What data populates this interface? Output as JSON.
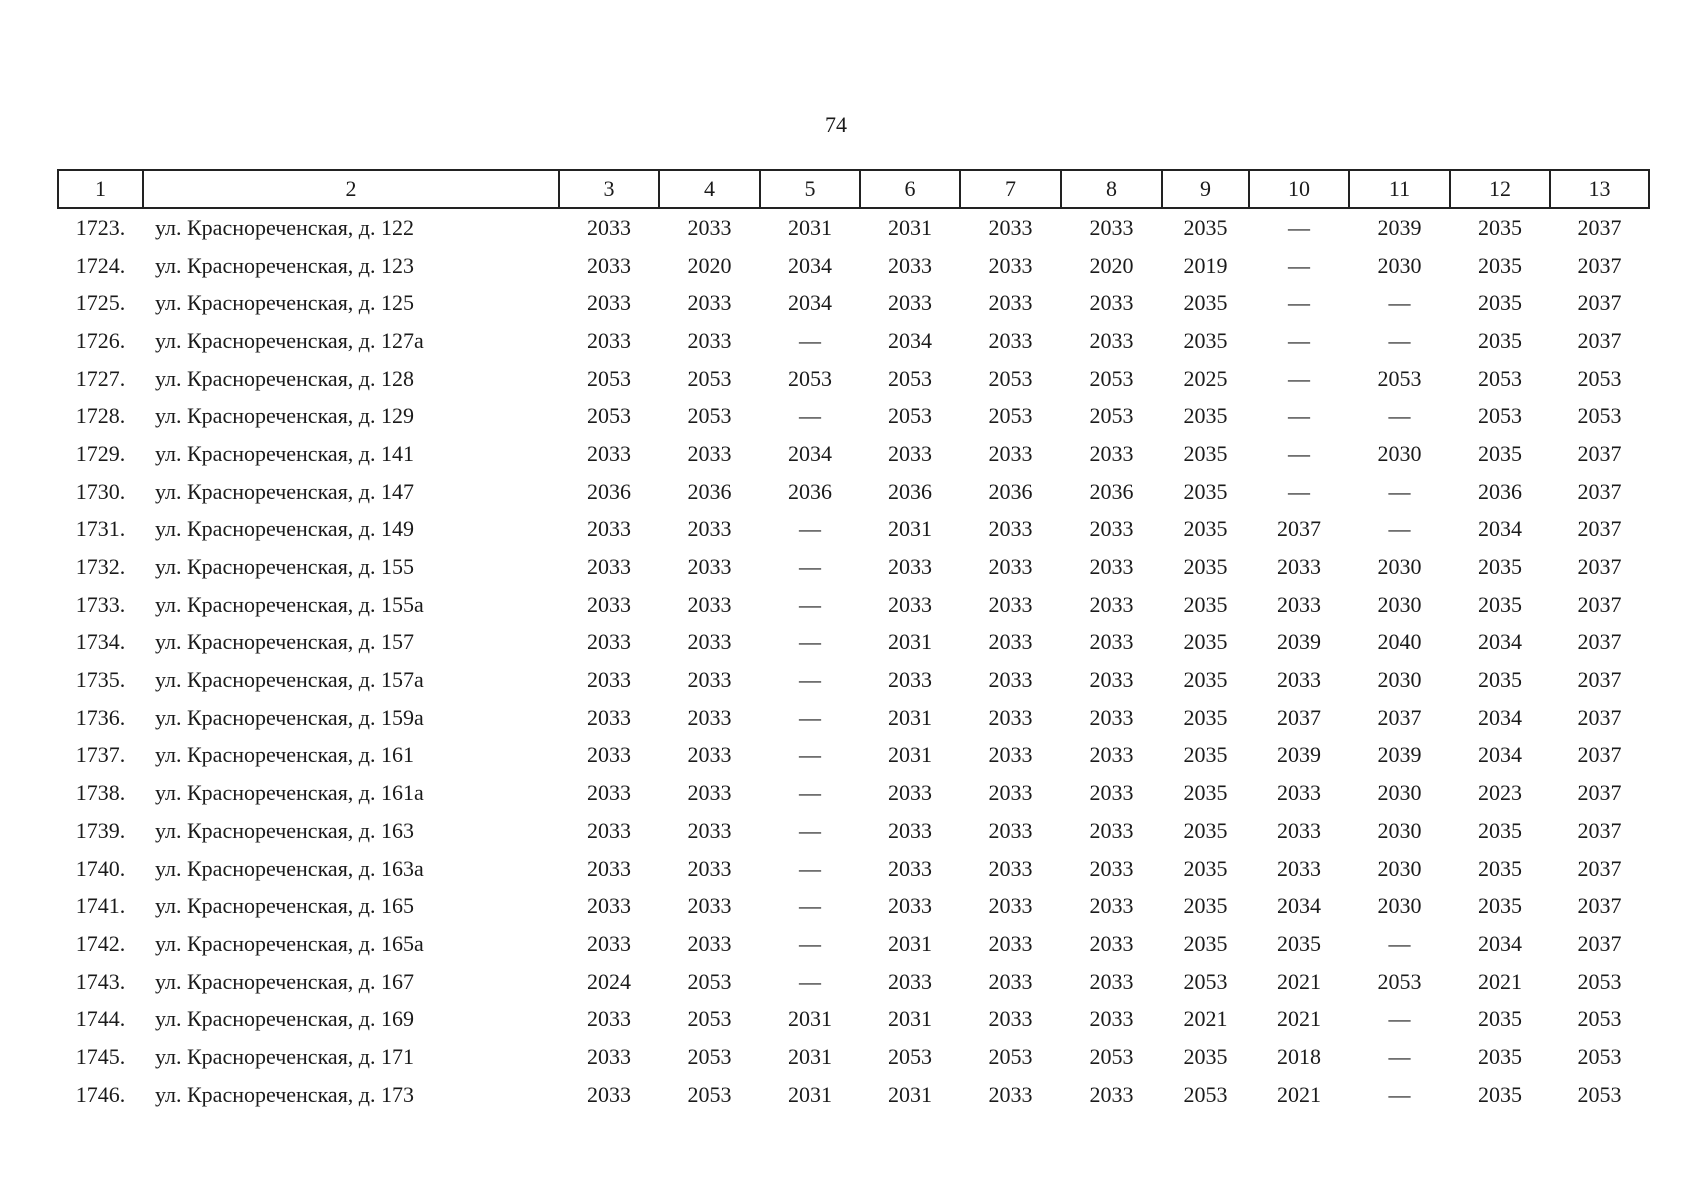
{
  "page_number": "74",
  "table": {
    "header": [
      "1",
      "2",
      "3",
      "4",
      "5",
      "6",
      "7",
      "8",
      "9",
      "10",
      "11",
      "12",
      "13"
    ],
    "rows": [
      [
        "1723.",
        "ул. Краснореченская, д. 122",
        "2033",
        "2033",
        "2031",
        "2031",
        "2033",
        "2033",
        "2035",
        "—",
        "2039",
        "2035",
        "2037"
      ],
      [
        "1724.",
        "ул. Краснореченская, д. 123",
        "2033",
        "2020",
        "2034",
        "2033",
        "2033",
        "2020",
        "2019",
        "—",
        "2030",
        "2035",
        "2037"
      ],
      [
        "1725.",
        "ул. Краснореченская, д. 125",
        "2033",
        "2033",
        "2034",
        "2033",
        "2033",
        "2033",
        "2035",
        "—",
        "—",
        "2035",
        "2037"
      ],
      [
        "1726.",
        "ул. Краснореченская, д. 127а",
        "2033",
        "2033",
        "—",
        "2034",
        "2033",
        "2033",
        "2035",
        "—",
        "—",
        "2035",
        "2037"
      ],
      [
        "1727.",
        "ул. Краснореченская, д. 128",
        "2053",
        "2053",
        "2053",
        "2053",
        "2053",
        "2053",
        "2025",
        "—",
        "2053",
        "2053",
        "2053"
      ],
      [
        "1728.",
        "ул. Краснореченская, д. 129",
        "2053",
        "2053",
        "—",
        "2053",
        "2053",
        "2053",
        "2035",
        "—",
        "—",
        "2053",
        "2053"
      ],
      [
        "1729.",
        "ул. Краснореченская, д. 141",
        "2033",
        "2033",
        "2034",
        "2033",
        "2033",
        "2033",
        "2035",
        "—",
        "2030",
        "2035",
        "2037"
      ],
      [
        "1730.",
        "ул. Краснореченская, д. 147",
        "2036",
        "2036",
        "2036",
        "2036",
        "2036",
        "2036",
        "2035",
        "—",
        "—",
        "2036",
        "2037"
      ],
      [
        "1731.",
        "ул. Краснореченская, д. 149",
        "2033",
        "2033",
        "—",
        "2031",
        "2033",
        "2033",
        "2035",
        "2037",
        "—",
        "2034",
        "2037"
      ],
      [
        "1732.",
        "ул. Краснореченская, д. 155",
        "2033",
        "2033",
        "—",
        "2033",
        "2033",
        "2033",
        "2035",
        "2033",
        "2030",
        "2035",
        "2037"
      ],
      [
        "1733.",
        "ул. Краснореченская, д. 155а",
        "2033",
        "2033",
        "—",
        "2033",
        "2033",
        "2033",
        "2035",
        "2033",
        "2030",
        "2035",
        "2037"
      ],
      [
        "1734.",
        "ул. Краснореченская, д. 157",
        "2033",
        "2033",
        "—",
        "2031",
        "2033",
        "2033",
        "2035",
        "2039",
        "2040",
        "2034",
        "2037"
      ],
      [
        "1735.",
        "ул. Краснореченская, д. 157а",
        "2033",
        "2033",
        "—",
        "2033",
        "2033",
        "2033",
        "2035",
        "2033",
        "2030",
        "2035",
        "2037"
      ],
      [
        "1736.",
        "ул. Краснореченская, д. 159а",
        "2033",
        "2033",
        "—",
        "2031",
        "2033",
        "2033",
        "2035",
        "2037",
        "2037",
        "2034",
        "2037"
      ],
      [
        "1737.",
        "ул. Краснореченская, д. 161",
        "2033",
        "2033",
        "—",
        "2031",
        "2033",
        "2033",
        "2035",
        "2039",
        "2039",
        "2034",
        "2037"
      ],
      [
        "1738.",
        "ул. Краснореченская, д. 161а",
        "2033",
        "2033",
        "—",
        "2033",
        "2033",
        "2033",
        "2035",
        "2033",
        "2030",
        "2023",
        "2037"
      ],
      [
        "1739.",
        "ул. Краснореченская, д. 163",
        "2033",
        "2033",
        "—",
        "2033",
        "2033",
        "2033",
        "2035",
        "2033",
        "2030",
        "2035",
        "2037"
      ],
      [
        "1740.",
        "ул. Краснореченская, д. 163а",
        "2033",
        "2033",
        "—",
        "2033",
        "2033",
        "2033",
        "2035",
        "2033",
        "2030",
        "2035",
        "2037"
      ],
      [
        "1741.",
        "ул. Краснореченская, д. 165",
        "2033",
        "2033",
        "—",
        "2033",
        "2033",
        "2033",
        "2035",
        "2034",
        "2030",
        "2035",
        "2037"
      ],
      [
        "1742.",
        "ул. Краснореченская, д. 165а",
        "2033",
        "2033",
        "—",
        "2031",
        "2033",
        "2033",
        "2035",
        "2035",
        "—",
        "2034",
        "2037"
      ],
      [
        "1743.",
        "ул. Краснореченская, д. 167",
        "2024",
        "2053",
        "—",
        "2033",
        "2033",
        "2033",
        "2053",
        "2021",
        "2053",
        "2021",
        "2053"
      ],
      [
        "1744.",
        "ул. Краснореченская, д. 169",
        "2033",
        "2053",
        "2031",
        "2031",
        "2033",
        "2033",
        "2021",
        "2021",
        "—",
        "2035",
        "2053"
      ],
      [
        "1745.",
        "ул. Краснореченская, д. 171",
        "2033",
        "2053",
        "2031",
        "2053",
        "2053",
        "2053",
        "2035",
        "2018",
        "—",
        "2035",
        "2053"
      ],
      [
        "1746.",
        "ул. Краснореченская, д. 173",
        "2033",
        "2053",
        "2031",
        "2031",
        "2033",
        "2033",
        "2053",
        "2021",
        "—",
        "2035",
        "2053"
      ]
    ]
  }
}
